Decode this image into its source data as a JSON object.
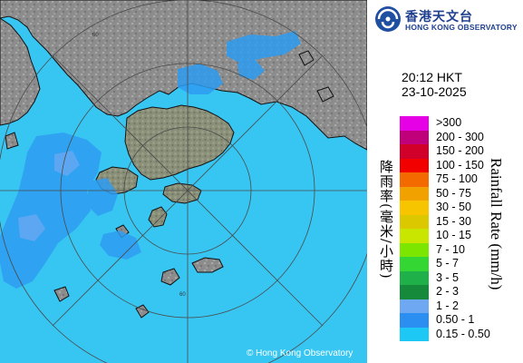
{
  "header": {
    "org_name_cn": "香港天文台",
    "org_name_en": "HONG KONG OBSERVATORY",
    "logo_icon": "hko-logo-icon"
  },
  "timestamp": {
    "time": "20:12 HKT",
    "date": "23-10-2025"
  },
  "legend": {
    "title_cn": "降雨率(毫米/小時)",
    "title_en": "Rainfall Rate (mm/h)",
    "items": [
      {
        "label": ">300",
        "color": "#e600e6"
      },
      {
        "label": "200 - 300",
        "color": "#c0007a"
      },
      {
        "label": "150 - 200",
        "color": "#d0002a"
      },
      {
        "label": "100 - 150",
        "color": "#f20000"
      },
      {
        "label": "75 - 100",
        "color": "#f26a00"
      },
      {
        "label": "50 - 75",
        "color": "#f2a200"
      },
      {
        "label": "30 - 50",
        "color": "#f7c400"
      },
      {
        "label": "15 - 30",
        "color": "#dcc800"
      },
      {
        "label": "10 - 15",
        "color": "#c8e600"
      },
      {
        "label": "7 - 10",
        "color": "#7de600"
      },
      {
        "label": "5 - 7",
        "color": "#33d633"
      },
      {
        "label": "3 - 5",
        "color": "#1fb04a"
      },
      {
        "label": "2 - 3",
        "color": "#158a3a"
      },
      {
        "label": "1 - 2",
        "color": "#6fa8f2"
      },
      {
        "label": "0.50 - 1",
        "color": "#2a8ff0"
      },
      {
        "label": "0.15 - 0.50",
        "color": "#1ec8f5"
      }
    ]
  },
  "map": {
    "range_ring_label": "60",
    "sea_color": "#37c6f2",
    "land_color": "#8a8a8a",
    "rain_color": "#2e9cf2",
    "copyright": "© Hong Kong Observatory"
  }
}
